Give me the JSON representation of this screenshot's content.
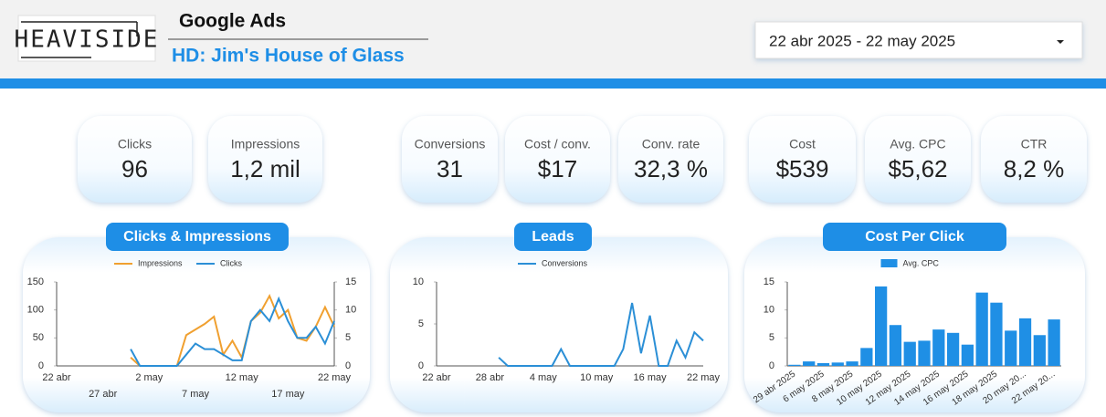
{
  "header": {
    "logo": "HEAVISIDE",
    "title": "Google Ads",
    "subtitle": "HD: Jim's House of Glass",
    "date_range": "22 abr 2025 - 22 may 2025"
  },
  "kpis": [
    {
      "label": "Clicks",
      "value": "96"
    },
    {
      "label": "Impressions",
      "value": "1,2 mil"
    },
    {
      "label": "Conversions",
      "value": "31"
    },
    {
      "label": "Cost / conv.",
      "value": "$17"
    },
    {
      "label": "Conv. rate",
      "value": "32,3 %"
    },
    {
      "label": "Cost",
      "value": "$539"
    },
    {
      "label": "Avg. CPC",
      "value": "$5,62"
    },
    {
      "label": "CTR",
      "value": "8,2 %"
    }
  ],
  "chart_data": [
    {
      "type": "line",
      "title": "Clicks & Impressions",
      "categories": [
        "22 abr",
        null,
        null,
        null,
        null,
        "27 abr",
        null,
        null,
        null,
        null,
        "2 may",
        null,
        null,
        null,
        null,
        "7 may",
        null,
        null,
        null,
        null,
        "12 may",
        null,
        null,
        null,
        null,
        "17 may",
        null,
        null,
        null,
        null,
        "22 may"
      ],
      "series": [
        {
          "name": "Impressions",
          "color": "#f0a030",
          "axis": "y",
          "values": [
            null,
            null,
            null,
            null,
            null,
            null,
            null,
            null,
            15,
            0,
            0,
            0,
            0,
            0,
            55,
            65,
            75,
            88,
            20,
            45,
            15,
            80,
            95,
            125,
            85,
            100,
            50,
            45,
            70,
            105,
            70
          ]
        },
        {
          "name": "Clicks",
          "color": "#2b8fd6",
          "axis": "y2",
          "values": [
            null,
            null,
            null,
            null,
            null,
            null,
            null,
            null,
            3,
            0,
            0,
            0,
            0,
            0,
            2,
            4,
            3,
            3,
            2,
            1,
            1,
            8,
            10,
            8,
            12,
            8,
            5,
            5,
            7,
            4,
            8
          ]
        }
      ],
      "ylim": [
        0,
        150
      ],
      "yticks": [
        0,
        50,
        100,
        150
      ],
      "y2lim": [
        0,
        15
      ],
      "y2ticks": [
        0,
        5,
        10,
        15
      ]
    },
    {
      "type": "line",
      "title": "Leads",
      "categories": [
        "22 abr",
        null,
        null,
        null,
        null,
        null,
        "28 abr",
        null,
        null,
        null,
        null,
        null,
        "4 may",
        null,
        null,
        null,
        null,
        null,
        "10 may",
        null,
        null,
        null,
        null,
        null,
        "16 may",
        null,
        null,
        null,
        null,
        null,
        "22 may"
      ],
      "series": [
        {
          "name": "Conversions",
          "color": "#2b8fd6",
          "axis": "y",
          "values": [
            null,
            null,
            null,
            null,
            null,
            null,
            null,
            1,
            0,
            0,
            0,
            0,
            0,
            0,
            2,
            0,
            0,
            0,
            0,
            0,
            0,
            2,
            7.5,
            1.5,
            6,
            0,
            0,
            3,
            1,
            4,
            3
          ]
        }
      ],
      "ylim": [
        0,
        10
      ],
      "yticks": [
        0,
        5,
        10
      ]
    },
    {
      "type": "bar",
      "title": "Cost Per Click",
      "categories": [
        "29 abr 2025",
        null,
        "6 may 2025",
        null,
        "8 may 2025",
        null,
        "10 may 2025",
        null,
        "12 may 2025",
        null,
        "14 may 2025",
        null,
        "16 may 2025",
        null,
        "18 may 2025",
        null,
        "20 may 20...",
        null,
        "22 may 20..."
      ],
      "series": [
        {
          "name": "Avg. CPC",
          "color": "#1f8fe5",
          "values": [
            0.2,
            0.8,
            0.5,
            0.6,
            0.8,
            3.2,
            14.2,
            7.3,
            4.3,
            4.5,
            6.5,
            5.9,
            3.8,
            13.1,
            11.3,
            6.3,
            8.5,
            5.5,
            8.3
          ]
        }
      ],
      "ylim": [
        0,
        15
      ],
      "yticks": [
        0,
        5,
        10,
        15
      ]
    }
  ]
}
